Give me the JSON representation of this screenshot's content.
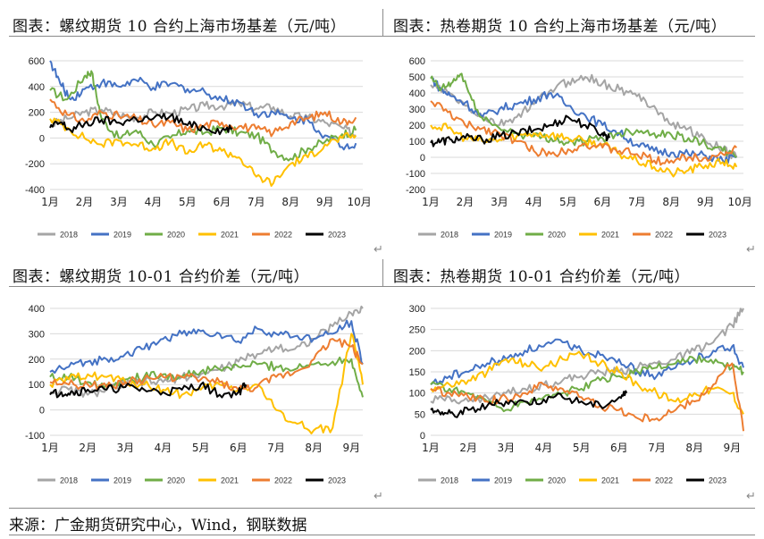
{
  "titles": [
    "图表：螺纹期货 10 合约上海市场基差（元/吨）",
    "图表：热卷期货 10 合约上海市场基差（元/吨）",
    "图表：螺纹期货 10-01 合约价差（元/吨）",
    "图表：热卷期货 10-01 合约价差（元/吨）"
  ],
  "source": "来源：广金期货研究中心，Wind，钢联数据",
  "series_colors": {
    "2018": "#a5a5a5",
    "2019": "#4472c4",
    "2020": "#70ad47",
    "2021": "#ffc000",
    "2022": "#ed7d31",
    "2023": "#000000"
  },
  "chart_data": [
    {
      "type": "line",
      "title": "螺纹期货 10 合约上海市场基差（元/吨）",
      "x_ticks": [
        "1月",
        "2月",
        "3月",
        "4月",
        "5月",
        "6月",
        "7月",
        "8月",
        "9月",
        "10月"
      ],
      "ylim": [
        -400,
        600
      ],
      "y_ticks": [
        600,
        400,
        200,
        0,
        -200,
        -400
      ],
      "grid": true,
      "legend": "bottom",
      "series": [
        {
          "name": "2018",
          "x": [
            1,
            1.5,
            2,
            2.5,
            3,
            3.5,
            4,
            4.5,
            5,
            5.5,
            6,
            6.5,
            7,
            7.5,
            8,
            8.5,
            9,
            9.5,
            9.9
          ],
          "y": [
            100,
            150,
            200,
            220,
            180,
            160,
            200,
            190,
            220,
            250,
            250,
            270,
            230,
            240,
            170,
            160,
            120,
            80,
            20
          ]
        },
        {
          "name": "2019",
          "x": [
            1,
            1.3,
            1.6,
            2,
            2.5,
            3,
            3.5,
            4,
            4.5,
            5,
            5.5,
            6,
            6.5,
            7,
            7.5,
            8,
            8.5,
            9,
            9.5,
            9.9
          ],
          "y": [
            600,
            420,
            300,
            380,
            430,
            400,
            450,
            390,
            420,
            380,
            360,
            300,
            280,
            190,
            200,
            150,
            140,
            20,
            -70,
            -40
          ]
        },
        {
          "name": "2020",
          "x": [
            1,
            1.5,
            2,
            2.2,
            2.5,
            3,
            3.5,
            4,
            4.5,
            5,
            5.5,
            6,
            6.5,
            7,
            7.5,
            8,
            8.5,
            9,
            9.5,
            9.9
          ],
          "y": [
            370,
            300,
            480,
            520,
            150,
            0,
            60,
            -50,
            0,
            60,
            40,
            80,
            40,
            20,
            -100,
            -160,
            -80,
            -30,
            30,
            60
          ]
        },
        {
          "name": "2021",
          "x": [
            1,
            1.5,
            2,
            2.5,
            3,
            3.5,
            4,
            4.5,
            5,
            5.5,
            6,
            6.5,
            7,
            7.5,
            8,
            8.5,
            9,
            9.5,
            9.9
          ],
          "y": [
            150,
            80,
            0,
            -50,
            -20,
            -50,
            -80,
            -30,
            -120,
            -50,
            -100,
            -150,
            -300,
            -350,
            -200,
            -150,
            -50,
            0,
            20
          ]
        },
        {
          "name": "2022",
          "x": [
            1,
            1.5,
            2,
            2.5,
            3,
            3.5,
            4,
            4.5,
            5,
            5.5,
            6,
            6.5,
            7,
            7.5,
            8,
            8.5,
            9,
            9.5,
            9.9
          ],
          "y": [
            300,
            180,
            130,
            200,
            170,
            150,
            100,
            120,
            60,
            100,
            120,
            90,
            70,
            40,
            120,
            150,
            200,
            120,
            160
          ]
        },
        {
          "name": "2023",
          "x": [
            1,
            1.3,
            1.6,
            2,
            2.5,
            3,
            3.5,
            4,
            4.5,
            5,
            5.5,
            6,
            6.3
          ],
          "y": [
            80,
            120,
            60,
            110,
            140,
            120,
            150,
            150,
            170,
            100,
            80,
            60,
            80
          ]
        }
      ]
    },
    {
      "type": "line",
      "title": "热卷期货 10 合约上海市场基差（元/吨）",
      "x_ticks": [
        "1月",
        "2月",
        "3月",
        "4月",
        "5月",
        "6月",
        "7月",
        "8月",
        "9月",
        "10月"
      ],
      "ylim": [
        -200,
        600
      ],
      "y_ticks": [
        600,
        500,
        400,
        300,
        200,
        100,
        0,
        -100,
        -200
      ],
      "grid": true,
      "legend": "bottom",
      "series": [
        {
          "name": "2018",
          "x": [
            1,
            1.5,
            2,
            2.5,
            3,
            3.5,
            4,
            4.5,
            5,
            5.5,
            6,
            6.5,
            7,
            7.5,
            8,
            8.5,
            9,
            9.5,
            9.9
          ],
          "y": [
            450,
            400,
            320,
            250,
            200,
            250,
            330,
            420,
            470,
            500,
            460,
            420,
            380,
            320,
            200,
            180,
            100,
            50,
            0
          ]
        },
        {
          "name": "2019",
          "x": [
            1,
            1.3,
            1.6,
            2,
            2.5,
            3,
            3.5,
            4,
            4.5,
            5,
            5.5,
            6,
            6.5,
            7,
            7.5,
            8,
            8.5,
            9,
            9.5,
            9.9
          ],
          "y": [
            500,
            420,
            380,
            340,
            250,
            300,
            330,
            360,
            400,
            320,
            260,
            200,
            150,
            80,
            40,
            30,
            20,
            10,
            -20,
            0
          ]
        },
        {
          "name": "2020",
          "x": [
            1,
            1.3,
            1.6,
            1.9,
            2.3,
            2.8,
            3.5,
            4,
            4.5,
            5,
            5.5,
            6,
            6.5,
            7,
            7.5,
            8,
            8.5,
            9,
            9.5,
            9.9
          ],
          "y": [
            490,
            420,
            460,
            520,
            300,
            200,
            150,
            130,
            120,
            90,
            100,
            120,
            150,
            170,
            150,
            140,
            120,
            80,
            40,
            0
          ]
        },
        {
          "name": "2021",
          "x": [
            1,
            1.5,
            2,
            2.5,
            3,
            3.5,
            4,
            4.5,
            5,
            5.5,
            6,
            6.5,
            7,
            7.5,
            8,
            8.5,
            9,
            9.5,
            9.9
          ],
          "y": [
            200,
            180,
            120,
            100,
            110,
            130,
            150,
            140,
            120,
            100,
            80,
            20,
            -20,
            -60,
            -100,
            -80,
            -50,
            -30,
            -60
          ]
        },
        {
          "name": "2022",
          "x": [
            1,
            1.5,
            2,
            2.5,
            3,
            3.5,
            4,
            4.5,
            5,
            5.5,
            6,
            6.5,
            7,
            7.5,
            8,
            8.5,
            9,
            9.5,
            9.9
          ],
          "y": [
            350,
            280,
            200,
            180,
            150,
            100,
            40,
            20,
            50,
            80,
            60,
            40,
            20,
            -20,
            -20,
            0,
            0,
            20,
            60
          ]
        },
        {
          "name": "2023",
          "x": [
            1,
            1.3,
            1.6,
            2,
            2.5,
            3,
            3.5,
            4,
            4.5,
            5,
            5.5,
            6,
            6.2
          ],
          "y": [
            90,
            100,
            110,
            120,
            110,
            130,
            150,
            170,
            200,
            250,
            200,
            150,
            120
          ]
        }
      ]
    },
    {
      "type": "line",
      "title": "螺纹期货 10-01 合约价差（元/吨）",
      "x_ticks": [
        "1月",
        "2月",
        "3月",
        "4月",
        "5月",
        "6月",
        "7月",
        "8月",
        "9月"
      ],
      "ylim": [
        -100,
        400
      ],
      "y_ticks": [
        400,
        300,
        200,
        100,
        0,
        -100
      ],
      "grid": true,
      "legend": "bottom",
      "series": [
        {
          "name": "2018",
          "x": [
            1,
            1.5,
            2,
            2.5,
            3,
            3.5,
            4,
            4.5,
            5,
            5.5,
            6,
            6.5,
            7,
            7.5,
            8,
            8.5,
            9,
            9.3
          ],
          "y": [
            70,
            80,
            60,
            80,
            100,
            110,
            110,
            130,
            140,
            160,
            190,
            220,
            250,
            240,
            280,
            330,
            380,
            400
          ]
        },
        {
          "name": "2019",
          "x": [
            1,
            1.5,
            2,
            2.5,
            3,
            3.5,
            4,
            4.5,
            5,
            5.5,
            6,
            6.5,
            7,
            7.5,
            8,
            8.5,
            9,
            9.3
          ],
          "y": [
            150,
            170,
            190,
            200,
            220,
            240,
            280,
            300,
            310,
            300,
            270,
            320,
            300,
            290,
            280,
            300,
            350,
            180
          ]
        },
        {
          "name": "2020",
          "x": [
            1,
            1.5,
            2,
            2.5,
            3,
            3.5,
            4,
            4.5,
            5,
            5.5,
            6,
            6.5,
            7,
            7.5,
            8,
            8.5,
            9,
            9.3
          ],
          "y": [
            130,
            130,
            110,
            100,
            120,
            130,
            140,
            130,
            150,
            160,
            170,
            180,
            170,
            160,
            180,
            190,
            200,
            50
          ]
        },
        {
          "name": "2021",
          "x": [
            1,
            1.5,
            2,
            2.5,
            3,
            3.5,
            4,
            4.5,
            5,
            5.5,
            6,
            6.5,
            7,
            7.5,
            8,
            8.5,
            9,
            9.3
          ],
          "y": [
            100,
            120,
            140,
            130,
            110,
            100,
            80,
            60,
            80,
            100,
            80,
            100,
            0,
            -50,
            -80,
            -70,
            300,
            100
          ]
        },
        {
          "name": "2022",
          "x": [
            1,
            1.5,
            2,
            2.5,
            3,
            3.5,
            4,
            4.5,
            5,
            5.5,
            6,
            6.5,
            7,
            7.5,
            8,
            8.5,
            9,
            9.3
          ],
          "y": [
            110,
            100,
            100,
            90,
            110,
            120,
            130,
            130,
            120,
            110,
            80,
            90,
            130,
            150,
            200,
            280,
            250,
            180
          ]
        },
        {
          "name": "2023",
          "x": [
            1,
            1.3,
            1.6,
            2,
            2.5,
            3,
            3.5,
            4,
            4.5,
            5,
            5.5,
            6,
            6.2
          ],
          "y": [
            60,
            70,
            70,
            80,
            80,
            90,
            80,
            70,
            80,
            100,
            60,
            70,
            100
          ]
        }
      ]
    },
    {
      "type": "line",
      "title": "热卷期货 10-01 合约价差（元/吨）",
      "x_ticks": [
        "1月",
        "2月",
        "3月",
        "4月",
        "5月",
        "6月",
        "7月",
        "8月",
        "9月"
      ],
      "ylim": [
        0,
        300
      ],
      "y_ticks": [
        300,
        250,
        200,
        150,
        100,
        50,
        0
      ],
      "grid": true,
      "legend": "bottom",
      "series": [
        {
          "name": "2018",
          "x": [
            1,
            1.5,
            2,
            2.5,
            3,
            3.5,
            4,
            4.5,
            5,
            5.5,
            6,
            6.5,
            7,
            7.5,
            8,
            8.5,
            9,
            9.3
          ],
          "y": [
            80,
            90,
            80,
            90,
            100,
            110,
            120,
            130,
            140,
            150,
            150,
            160,
            170,
            180,
            200,
            220,
            260,
            300
          ]
        },
        {
          "name": "2019",
          "x": [
            1,
            1.5,
            2,
            2.5,
            3,
            3.5,
            4,
            4.5,
            5,
            5.5,
            6,
            6.5,
            7,
            7.5,
            8,
            8.5,
            9,
            9.3
          ],
          "y": [
            120,
            140,
            150,
            170,
            180,
            200,
            210,
            220,
            200,
            190,
            180,
            150,
            140,
            160,
            180,
            200,
            210,
            160
          ]
        },
        {
          "name": "2020",
          "x": [
            1,
            1.5,
            2,
            2.5,
            3,
            3.5,
            4,
            4.5,
            5,
            5.5,
            6,
            6.5,
            7,
            7.5,
            8,
            8.5,
            9,
            9.3
          ],
          "y": [
            120,
            110,
            100,
            80,
            60,
            80,
            90,
            100,
            110,
            130,
            140,
            150,
            160,
            170,
            180,
            170,
            160,
            150
          ]
        },
        {
          "name": "2021",
          "x": [
            1,
            1.5,
            2,
            2.5,
            3,
            3.5,
            4,
            4.5,
            5,
            5.5,
            6,
            6.5,
            7,
            7.5,
            8,
            8.5,
            9,
            9.3
          ],
          "y": [
            110,
            120,
            130,
            150,
            180,
            170,
            160,
            180,
            190,
            170,
            150,
            120,
            100,
            80,
            100,
            110,
            100,
            50
          ]
        },
        {
          "name": "2022",
          "x": [
            1,
            1.5,
            2,
            2.5,
            3,
            3.5,
            4,
            4.5,
            5,
            5.5,
            6,
            6.5,
            7,
            7.5,
            8,
            8.5,
            9,
            9.3
          ],
          "y": [
            110,
            100,
            90,
            80,
            90,
            100,
            120,
            110,
            90,
            70,
            60,
            40,
            40,
            60,
            80,
            120,
            170,
            10
          ]
        },
        {
          "name": "2023",
          "x": [
            1,
            1.3,
            1.6,
            2,
            2.5,
            3,
            3.5,
            4,
            4.5,
            5,
            5.5,
            6,
            6.2
          ],
          "y": [
            60,
            55,
            50,
            60,
            70,
            80,
            80,
            85,
            90,
            80,
            70,
            90,
            100
          ]
        }
      ]
    }
  ]
}
